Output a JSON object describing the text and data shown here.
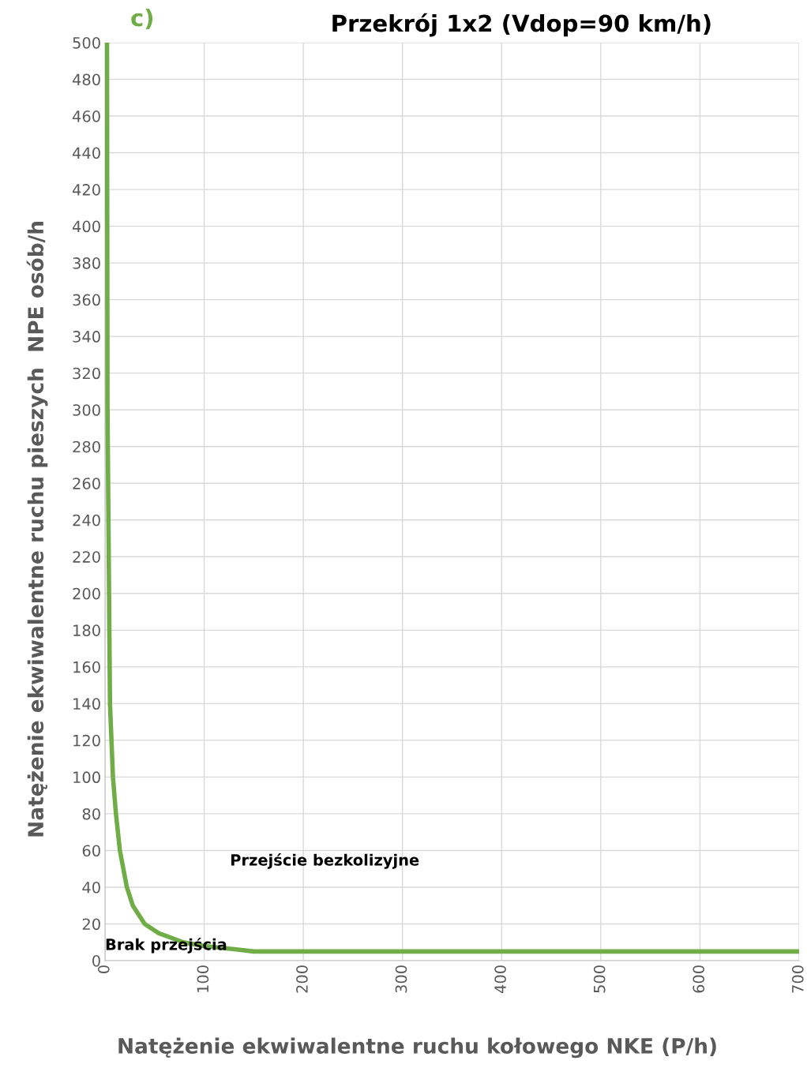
{
  "chart_data": {
    "type": "line",
    "title": "Przekrój 1x2 (Vdop=90 km/h)",
    "xlabel": "Natężenie ekwiwalentne ruchu kołowego NKE (P/h)",
    "ylabel": "Natężenie ekwiwalentne ruchu pieszych  NPE osób/h",
    "annotations": [
      "c)",
      "Przejście bezkolizyjne",
      "Brak przejścia"
    ],
    "series": [
      {
        "color": "#70ad47",
        "x": [
          2,
          2.5,
          5,
          8,
          11,
          15,
          22,
          28,
          40,
          54,
          79,
          100,
          134,
          150,
          700
        ],
        "values": [
          500,
          300,
          140,
          100,
          80,
          60,
          40,
          30,
          20,
          15,
          10,
          8,
          6,
          5,
          5
        ]
      }
    ],
    "xlim": [
      0,
      700
    ],
    "xticks": [
      0,
      100,
      200,
      300,
      400,
      500,
      600,
      700
    ],
    "ylim": [
      0,
      500
    ],
    "yticks": [
      0,
      20,
      40,
      60,
      80,
      100,
      120,
      140,
      160,
      180,
      200,
      220,
      240,
      260,
      280,
      300,
      320,
      340,
      360,
      380,
      400,
      420,
      440,
      460,
      480,
      500
    ],
    "grid": true,
    "legend": false,
    "marker": "none",
    "line_style": "solid"
  }
}
